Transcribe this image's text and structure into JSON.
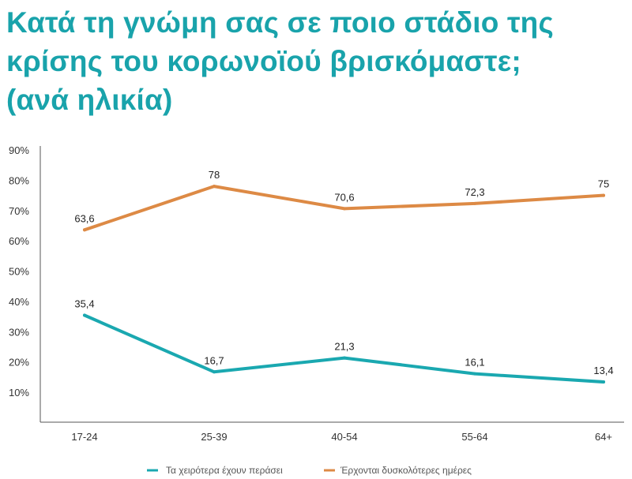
{
  "title": {
    "line1": "Κατά τη γνώμη σας σε ποιο στάδιο της",
    "line2": "κρίσης του κορωνοϊού βρισκόμαστε;",
    "line3": "(ανά ηλικία)"
  },
  "chart_data": {
    "type": "line",
    "categories": [
      "17-24",
      "25-39",
      "40-54",
      "55-64",
      "64+"
    ],
    "yticks": [
      "10%",
      "20%",
      "30%",
      "40%",
      "50%",
      "60%",
      "70%",
      "80%",
      "90%"
    ],
    "ylim": [
      0,
      90
    ],
    "series": [
      {
        "name": "Τα χειρότερα έχουν περάσει",
        "color": "#1aa8b0",
        "values": [
          35.4,
          16.7,
          21.3,
          16.1,
          13.4
        ],
        "labels": [
          "35,4",
          "16,7",
          "21,3",
          "16,1",
          "13,4"
        ]
      },
      {
        "name": "Έρχονται δυσκολότερες ημέρες",
        "color": "#dd8a45",
        "values": [
          63.6,
          78,
          70.6,
          72.3,
          75
        ],
        "labels": [
          "63,6",
          "78",
          "70,6",
          "72,3",
          "75"
        ]
      }
    ]
  }
}
